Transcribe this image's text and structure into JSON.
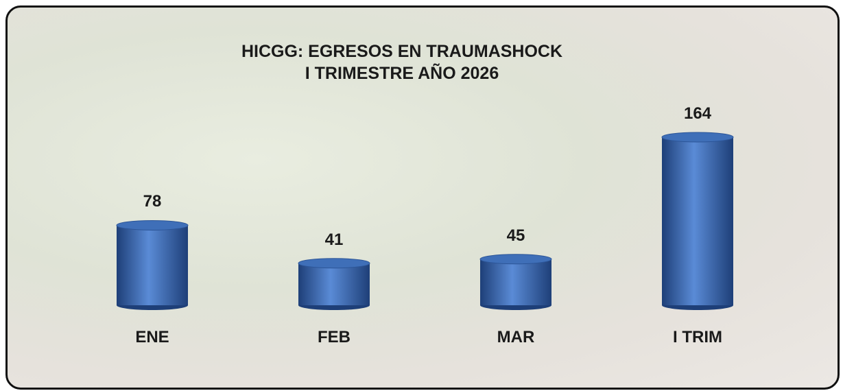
{
  "chart_data": {
    "type": "bar",
    "title": "HICGG: EGRESOS EN TRAUMASHOCK",
    "subtitle": "I TRIMESTRE AÑO 2026",
    "categories": [
      "ENE",
      "FEB",
      "MAR",
      "I TRIM"
    ],
    "values": [
      78,
      41,
      45,
      164
    ],
    "color": "#3f6fb8"
  }
}
